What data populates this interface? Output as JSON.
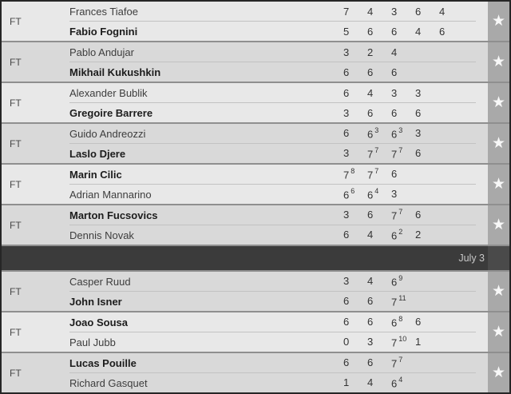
{
  "colors": {
    "row_light": "#e8e8e8",
    "row_dark": "#d9d9d9",
    "star_cell_bg": "#a9a9a9",
    "star_color": "#f8f8f8",
    "separator_bg": "#3b3b3b",
    "separator_star_bg": "#4a4a4a",
    "match_border": "#8f8f8f"
  },
  "star_icon_glyph": "★",
  "rows": [
    {
      "type": "match",
      "status": "FT",
      "shade": "light",
      "players": [
        {
          "name": "Frances Tiafoe",
          "winner": false,
          "sets": [
            {
              "v": "7"
            },
            {
              "v": "4"
            },
            {
              "v": "3"
            },
            {
              "v": "6"
            },
            {
              "v": "4"
            }
          ]
        },
        {
          "name": "Fabio Fognini",
          "winner": true,
          "sets": [
            {
              "v": "5"
            },
            {
              "v": "6"
            },
            {
              "v": "6"
            },
            {
              "v": "4"
            },
            {
              "v": "6"
            }
          ]
        }
      ]
    },
    {
      "type": "match",
      "status": "FT",
      "shade": "dark",
      "players": [
        {
          "name": "Pablo Andujar",
          "winner": false,
          "sets": [
            {
              "v": "3"
            },
            {
              "v": "2"
            },
            {
              "v": "4"
            }
          ]
        },
        {
          "name": "Mikhail Kukushkin",
          "winner": true,
          "sets": [
            {
              "v": "6"
            },
            {
              "v": "6"
            },
            {
              "v": "6"
            }
          ]
        }
      ]
    },
    {
      "type": "match",
      "status": "FT",
      "shade": "light",
      "players": [
        {
          "name": "Alexander Bublik",
          "winner": false,
          "sets": [
            {
              "v": "6"
            },
            {
              "v": "4"
            },
            {
              "v": "3"
            },
            {
              "v": "3"
            }
          ]
        },
        {
          "name": "Gregoire Barrere",
          "winner": true,
          "sets": [
            {
              "v": "3"
            },
            {
              "v": "6"
            },
            {
              "v": "6"
            },
            {
              "v": "6"
            }
          ]
        }
      ]
    },
    {
      "type": "match",
      "status": "FT",
      "shade": "dark",
      "players": [
        {
          "name": "Guido Andreozzi",
          "winner": false,
          "sets": [
            {
              "v": "6"
            },
            {
              "v": "6",
              "tb": "3"
            },
            {
              "v": "6",
              "tb": "3"
            },
            {
              "v": "3"
            }
          ]
        },
        {
          "name": "Laslo Djere",
          "winner": true,
          "sets": [
            {
              "v": "3"
            },
            {
              "v": "7",
              "tb": "7"
            },
            {
              "v": "7",
              "tb": "7"
            },
            {
              "v": "6"
            }
          ]
        }
      ]
    },
    {
      "type": "match",
      "status": "FT",
      "shade": "light",
      "players": [
        {
          "name": "Marin Cilic",
          "winner": true,
          "sets": [
            {
              "v": "7",
              "tb": "8"
            },
            {
              "v": "7",
              "tb": "7"
            },
            {
              "v": "6"
            }
          ]
        },
        {
          "name": "Adrian Mannarino",
          "winner": false,
          "sets": [
            {
              "v": "6",
              "tb": "6"
            },
            {
              "v": "6",
              "tb": "4"
            },
            {
              "v": "3"
            }
          ]
        }
      ]
    },
    {
      "type": "match",
      "status": "FT",
      "shade": "dark",
      "players": [
        {
          "name": "Marton Fucsovics",
          "winner": true,
          "sets": [
            {
              "v": "3"
            },
            {
              "v": "6"
            },
            {
              "v": "7",
              "tb": "7"
            },
            {
              "v": "6"
            }
          ]
        },
        {
          "name": "Dennis Novak",
          "winner": false,
          "sets": [
            {
              "v": "6"
            },
            {
              "v": "4"
            },
            {
              "v": "6",
              "tb": "2"
            },
            {
              "v": "2"
            }
          ]
        }
      ]
    },
    {
      "type": "separator",
      "label": "July 3"
    },
    {
      "type": "match",
      "status": "FT",
      "shade": "dark",
      "players": [
        {
          "name": "Casper Ruud",
          "winner": false,
          "sets": [
            {
              "v": "3"
            },
            {
              "v": "4"
            },
            {
              "v": "6",
              "tb": "9"
            }
          ]
        },
        {
          "name": "John Isner",
          "winner": true,
          "sets": [
            {
              "v": "6"
            },
            {
              "v": "6"
            },
            {
              "v": "7",
              "tb": "11"
            }
          ]
        }
      ]
    },
    {
      "type": "match",
      "status": "FT",
      "shade": "light",
      "players": [
        {
          "name": "Joao Sousa",
          "winner": true,
          "sets": [
            {
              "v": "6"
            },
            {
              "v": "6"
            },
            {
              "v": "6",
              "tb": "8"
            },
            {
              "v": "6"
            }
          ]
        },
        {
          "name": "Paul Jubb",
          "winner": false,
          "sets": [
            {
              "v": "0"
            },
            {
              "v": "3"
            },
            {
              "v": "7",
              "tb": "10"
            },
            {
              "v": "1"
            }
          ]
        }
      ]
    },
    {
      "type": "match",
      "status": "FT",
      "shade": "dark",
      "players": [
        {
          "name": "Lucas Pouille",
          "winner": true,
          "sets": [
            {
              "v": "6"
            },
            {
              "v": "6"
            },
            {
              "v": "7",
              "tb": "7"
            }
          ]
        },
        {
          "name": "Richard Gasquet",
          "winner": false,
          "sets": [
            {
              "v": "1"
            },
            {
              "v": "4"
            },
            {
              "v": "6",
              "tb": "4"
            }
          ]
        }
      ]
    }
  ]
}
